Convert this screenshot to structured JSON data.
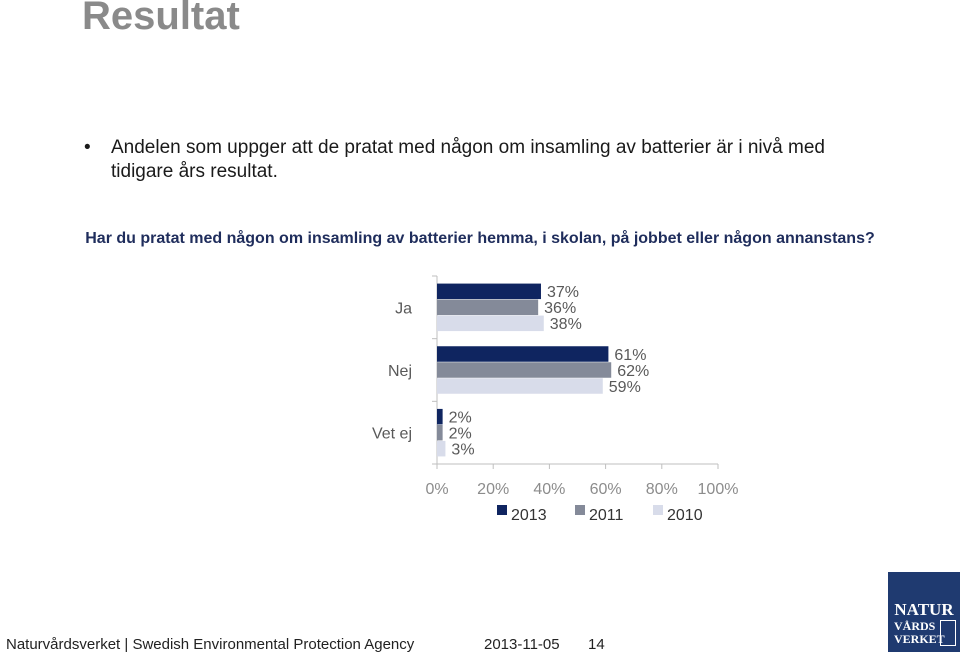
{
  "slide": {
    "title": "Resultat"
  },
  "bullet": {
    "marker": "•",
    "text": "Andelen som uppger att de pratat med någon om insamling av batterier är i nivå med tidigare års resultat."
  },
  "question": "Har du pratat med någon om insamling av batterier hemma, i skolan, på jobbet eller någon annanstans?",
  "chart_data": {
    "type": "bar",
    "orientation": "horizontal",
    "categories": [
      "Ja",
      "Nej",
      "Vet ej"
    ],
    "series": [
      {
        "name": "2013",
        "values": [
          37,
          61,
          2
        ],
        "color": "#0f2560"
      },
      {
        "name": "2011",
        "values": [
          36,
          62,
          2
        ],
        "color": "#848a99"
      },
      {
        "name": "2010",
        "values": [
          38,
          59,
          3
        ],
        "color": "#d8dcea"
      }
    ],
    "x_ticks": [
      "0%",
      "20%",
      "40%",
      "60%",
      "80%",
      "100%"
    ],
    "xlim": [
      0,
      100
    ],
    "value_suffix": "%",
    "legend_position": "bottom",
    "grid": false
  },
  "footer": {
    "text": "Naturvårdsverket | Swedish Environmental Protection Agency",
    "date": "2013-11-05",
    "page": "14"
  },
  "logo": {
    "line1": "NATUR",
    "line2": "VÅRDS",
    "line3": "VERKET"
  }
}
